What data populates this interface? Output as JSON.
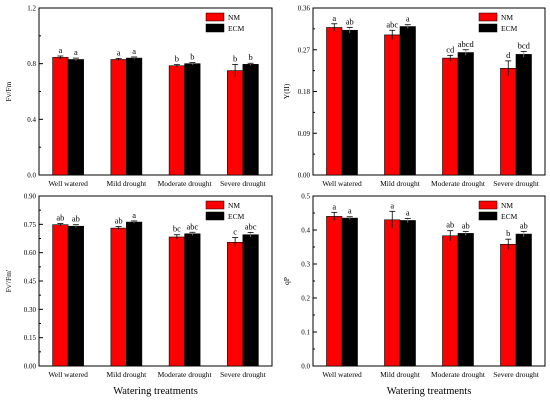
{
  "chart_data": [
    {
      "type": "bar",
      "categories": [
        "Well watered",
        "Mild drought",
        "Moderate drought",
        "Severe drought"
      ],
      "ylabel": "Fv/Fm",
      "xlabel": "",
      "ylim": [
        0,
        1.2
      ],
      "yticks": [
        "0.0",
        "0.4",
        "0.8",
        "1.2"
      ],
      "legend": "top-right",
      "series": [
        {
          "name": "NM",
          "color": "#ff0000",
          "values": [
            0.845,
            0.83,
            0.785,
            0.75
          ],
          "errors": [
            0.01,
            0.008,
            0.008,
            0.045
          ],
          "letters": [
            "a",
            "a",
            "b",
            "b"
          ]
        },
        {
          "name": "ECM",
          "color": "#000000",
          "values": [
            0.83,
            0.84,
            0.8,
            0.795
          ],
          "errors": [
            0.01,
            0.008,
            0.008,
            0.008
          ],
          "letters": [
            "a",
            "a",
            "b",
            "b"
          ]
        }
      ]
    },
    {
      "type": "bar",
      "categories": [
        "Well watered",
        "Mild drought",
        "Moderate drought",
        "Severe drought"
      ],
      "ylabel": "Y(II)",
      "xlabel": "",
      "ylim": [
        0,
        0.36
      ],
      "yticks": [
        "0.00",
        "0.09",
        "0.18",
        "0.27",
        "0.36"
      ],
      "legend": "top-right",
      "series": [
        {
          "name": "NM",
          "color": "#ff0000",
          "values": [
            0.318,
            0.302,
            0.252,
            0.23
          ],
          "errors": [
            0.008,
            0.01,
            0.006,
            0.016
          ],
          "letters": [
            "a",
            "abc",
            "cd",
            "d"
          ]
        },
        {
          "name": "ECM",
          "color": "#000000",
          "values": [
            0.312,
            0.32,
            0.264,
            0.26
          ],
          "errors": [
            0.006,
            0.004,
            0.006,
            0.006
          ],
          "letters": [
            "ab",
            "a",
            "abcd",
            "bcd"
          ]
        }
      ]
    },
    {
      "type": "bar",
      "categories": [
        "Well watered",
        "Mild drought",
        "Moderate drought",
        "Severe drought"
      ],
      "ylabel": "Fv'/Fm'",
      "xlabel": "Watering treatments",
      "ylim": [
        0,
        0.9
      ],
      "yticks": [
        "0.00",
        "0.15",
        "0.30",
        "0.45",
        "0.60",
        "0.75",
        "0.90"
      ],
      "legend": "top-right",
      "series": [
        {
          "name": "NM",
          "color": "#ff0000",
          "values": [
            0.748,
            0.73,
            0.683,
            0.655
          ],
          "errors": [
            0.006,
            0.008,
            0.012,
            0.025
          ],
          "letters": [
            "ab",
            "ab",
            "bc",
            "c"
          ]
        },
        {
          "name": "ECM",
          "color": "#000000",
          "values": [
            0.74,
            0.762,
            0.7,
            0.695
          ],
          "errors": [
            0.008,
            0.006,
            0.008,
            0.012
          ],
          "letters": [
            "ab",
            "a",
            "abc",
            "abc"
          ]
        }
      ]
    },
    {
      "type": "bar",
      "categories": [
        "Well watered",
        "Mild drought",
        "Moderate drought",
        "Severe drought"
      ],
      "ylabel": "qP",
      "xlabel": "Watering treatments",
      "ylim": [
        0,
        0.5
      ],
      "yticks": [
        "0.0",
        "0.1",
        "0.2",
        "0.3",
        "0.4",
        "0.5"
      ],
      "legend": "top-right",
      "series": [
        {
          "name": "NM",
          "color": "#ff0000",
          "values": [
            0.44,
            0.43,
            0.383,
            0.358
          ],
          "errors": [
            0.012,
            0.025,
            0.015,
            0.015
          ],
          "letters": [
            "a",
            "a",
            "ab",
            "b"
          ]
        },
        {
          "name": "ECM",
          "color": "#000000",
          "values": [
            0.435,
            0.428,
            0.39,
            0.388
          ],
          "errors": [
            0.004,
            0.006,
            0.006,
            0.008
          ],
          "letters": [
            "a",
            "a",
            "ab",
            "ab"
          ]
        }
      ]
    }
  ]
}
